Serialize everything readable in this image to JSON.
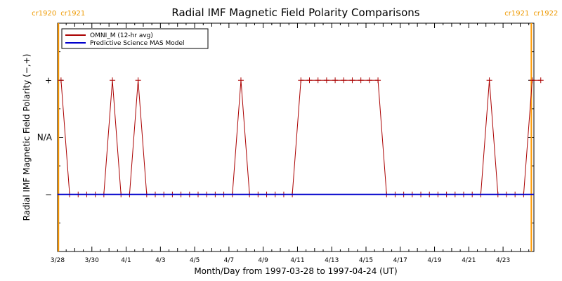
{
  "chart_data": {
    "type": "line",
    "title": "Radial IMF Magnetic Field Polarity Comparisons",
    "xlabel": "Month/Day from 1997-03-28 to 1997-04-24 (UT)",
    "ylabel": "Radial IMF Magnetic Field Polarity (−,+)",
    "x_ticks": [
      {
        "day": 0,
        "label": "3/28"
      },
      {
        "day": 2,
        "label": "3/30"
      },
      {
        "day": 4,
        "label": "4/1"
      },
      {
        "day": 6,
        "label": "4/3"
      },
      {
        "day": 8,
        "label": "4/5"
      },
      {
        "day": 10,
        "label": "4/7"
      },
      {
        "day": 12,
        "label": "4/9"
      },
      {
        "day": 14,
        "label": "4/11"
      },
      {
        "day": 16,
        "label": "4/13"
      },
      {
        "day": 18,
        "label": "4/15"
      },
      {
        "day": 20,
        "label": "4/17"
      },
      {
        "day": 22,
        "label": "4/19"
      },
      {
        "day": 24,
        "label": "4/21"
      },
      {
        "day": 26,
        "label": "4/23"
      }
    ],
    "xlim": [
      0,
      27.8
    ],
    "y_ticks": [
      {
        "value": 1,
        "label": "+"
      },
      {
        "value": 0,
        "label": "N/A"
      },
      {
        "value": -1,
        "label": "−"
      }
    ],
    "ylim": [
      -2,
      2
    ],
    "legend": {
      "placement": "top-left",
      "entries": [
        {
          "name": "OMNI_M (12-hr avg)",
          "color": "#aa0000"
        },
        {
          "name": "Predictive Science MAS Model",
          "color": "#0000cc"
        }
      ]
    },
    "series": [
      {
        "name": "OMNI_M (12-hr avg)",
        "color": "#aa0000",
        "marker": "plus",
        "step_days": 0.5,
        "start_day": 0.2,
        "values": [
          1,
          -1,
          -1,
          -1,
          -1,
          -1,
          1,
          -1,
          -1,
          1,
          -1,
          -1,
          -1,
          -1,
          -1,
          -1,
          -1,
          -1,
          -1,
          -1,
          -1,
          1,
          -1,
          -1,
          -1,
          -1,
          -1,
          -1,
          1,
          1,
          1,
          1,
          1,
          1,
          1,
          1,
          1,
          1,
          -1,
          -1,
          -1,
          -1,
          -1,
          -1,
          -1,
          -1,
          -1,
          -1,
          -1,
          -1,
          1,
          -1,
          -1,
          -1,
          -1,
          1,
          1
        ]
      },
      {
        "name": "Predictive Science MAS Model",
        "color": "#0000cc",
        "x": [
          0,
          27.8
        ],
        "values": [
          -1,
          -1
        ]
      }
    ],
    "carrington_markers": [
      {
        "day": 0.05,
        "left_label": "cr1920",
        "right_label": "cr1921"
      },
      {
        "day": 27.65,
        "left_label": "cr1921",
        "right_label": "cr1922"
      }
    ],
    "colors": {
      "marker_line": "#ff9900",
      "marker_text": "#ee9900"
    }
  }
}
